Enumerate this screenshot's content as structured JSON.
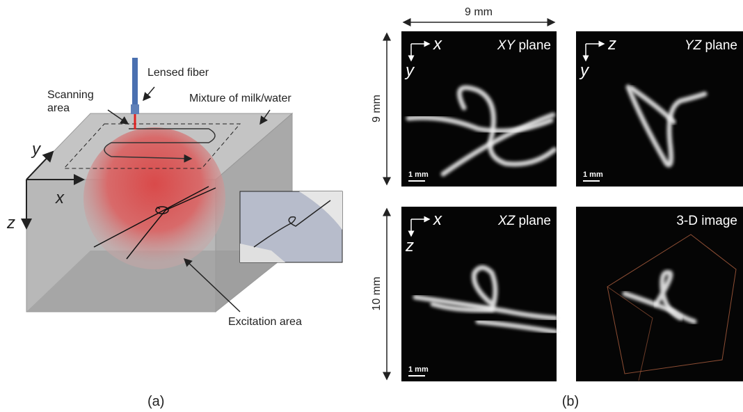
{
  "panel_a": {
    "lensed_fiber": "Lensed fiber",
    "scanning_area": [
      "Scanning",
      "area"
    ],
    "mixture": "Mixture of milk/water",
    "excitation_area": "Excitation area",
    "axes": {
      "y": "y",
      "x": "x",
      "z": "z"
    },
    "caption": "(a)"
  },
  "panel_b": {
    "width_label": "9 mm",
    "height_labels": [
      "9 mm",
      "10 mm"
    ],
    "images": [
      {
        "axis_h": "x",
        "axis_v": "y",
        "plane": "XY",
        "plane_word": "plane",
        "scale": "1 mm"
      },
      {
        "axis_h": "z",
        "axis_v": "y",
        "plane": "YZ",
        "plane_word": "plane",
        "scale": "1 mm"
      },
      {
        "axis_h": "x",
        "axis_v": "z",
        "plane": "XZ",
        "plane_word": "plane",
        "scale": "1 mm"
      },
      {
        "title": "3-D image"
      }
    ],
    "caption": "(b)"
  }
}
